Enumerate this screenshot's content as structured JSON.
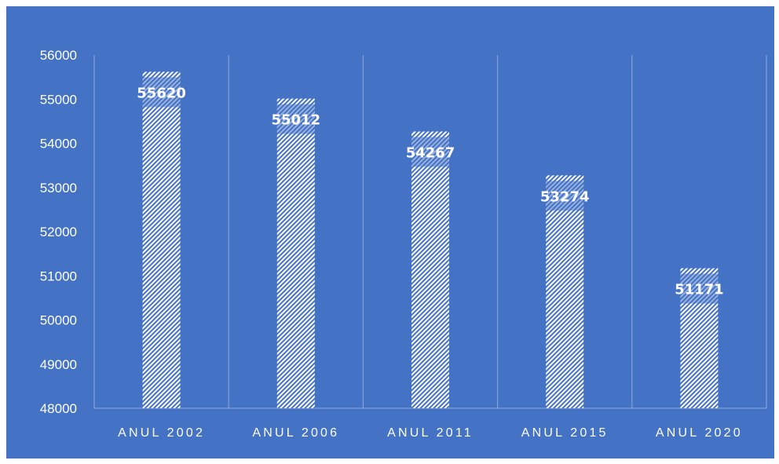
{
  "colors": {
    "background": "#4472C4",
    "bar_hatch": "#ffffff",
    "gridline": "#8FAADC",
    "text": "#ffffff"
  },
  "chart_data": {
    "type": "bar",
    "categories": [
      "ANUL 2002",
      "ANUL 2006",
      "ANUL 2011",
      "ANUL 2015",
      "ANUL 2020"
    ],
    "values": [
      55620,
      55012,
      54267,
      53274,
      51171
    ],
    "data_labels": [
      "55620",
      "55012",
      "54267",
      "53274",
      "51171"
    ],
    "title": "",
    "xlabel": "",
    "ylabel": "",
    "ylim": [
      48000,
      56000
    ],
    "yticks": [
      "48000",
      "49000",
      "50000",
      "51000",
      "52000",
      "53000",
      "54000",
      "55000",
      "56000"
    ],
    "grid": "vertical category separators",
    "legend": "none",
    "bar_fill": "diagonal white hatch"
  }
}
